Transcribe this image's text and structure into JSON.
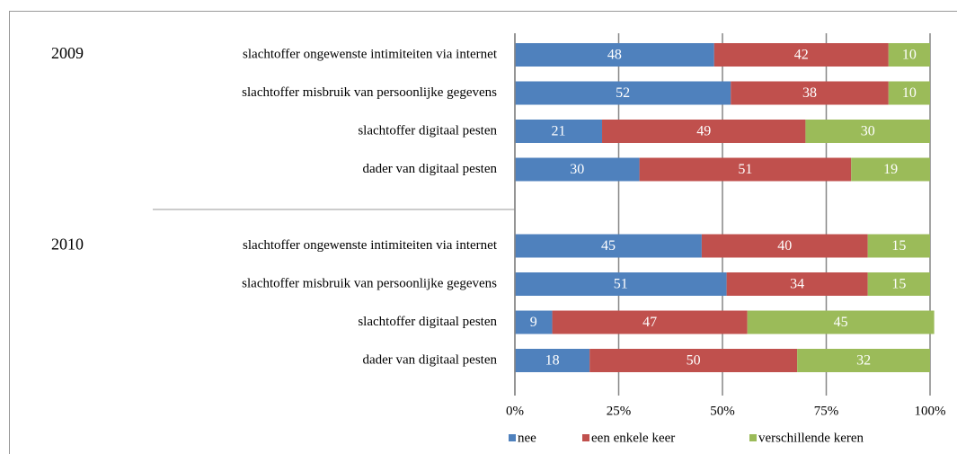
{
  "chart_data": {
    "type": "stacked_barh",
    "groups": [
      "2009",
      "2010"
    ],
    "categories": [
      "slachtoffer ongewenste intimiteiten via internet",
      "slachtoffer misbruik van persoonlijke gegevens",
      "slachtoffer digitaal pesten",
      "dader van digitaal pesten",
      null,
      "slachtoffer ongewenste intimiteiten via internet",
      "slachtoffer misbruik van persoonlijke gegevens",
      "slachtoffer digitaal pesten",
      "dader van digitaal pesten"
    ],
    "series": [
      {
        "name": "nee",
        "color": "#4f81bd",
        "values": [
          48,
          52,
          21,
          30,
          null,
          45,
          51,
          9,
          18
        ]
      },
      {
        "name": "een enkele keer",
        "color": "#c0504d",
        "values": [
          42,
          38,
          49,
          51,
          null,
          40,
          34,
          47,
          50
        ]
      },
      {
        "name": "verschillende keren",
        "color": "#9bbb59",
        "values": [
          10,
          10,
          30,
          19,
          null,
          15,
          15,
          45,
          32
        ]
      }
    ],
    "xlim": [
      0,
      100
    ],
    "xticks": [
      {
        "value": 0,
        "label": "0%"
      },
      {
        "value": 25,
        "label": "25%"
      },
      {
        "value": 50,
        "label": "50%"
      },
      {
        "value": 75,
        "label": "75%"
      },
      {
        "value": 100,
        "label": "100%"
      }
    ],
    "grid": true,
    "legend": "bottom"
  }
}
